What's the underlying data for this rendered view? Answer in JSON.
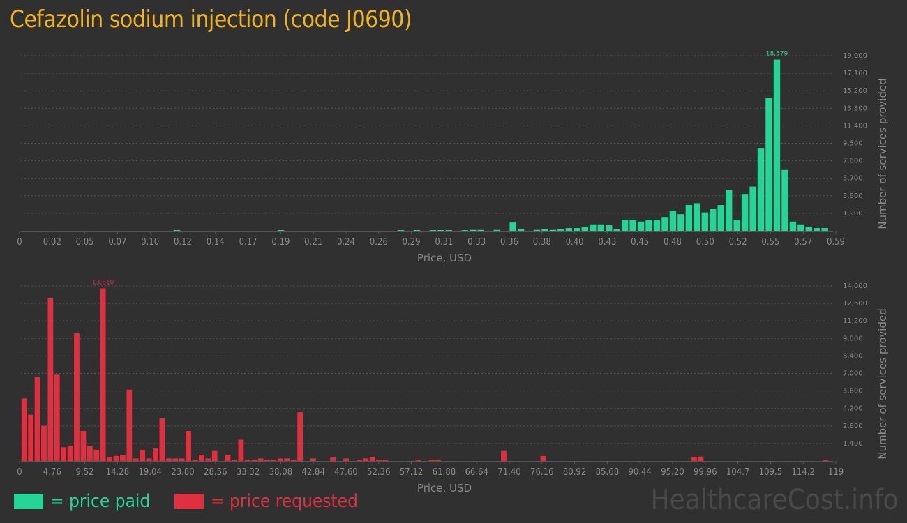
{
  "title": "Cefazolin sodium injection (code J0690)",
  "legend": {
    "paid_label": "= price paid",
    "requested_label": "= price requested"
  },
  "watermark": "HealthcareCost.info",
  "colors": {
    "paid": "#25d597",
    "requested": "#e0303f",
    "title": "#f0b322"
  },
  "chart_data": [
    {
      "type": "bar",
      "name": "price paid",
      "xlabel": "Price, USD",
      "ylabel": "Number of services provided",
      "x_ticks": [
        "0",
        "0.02",
        "0.05",
        "0.07",
        "0.10",
        "0.12",
        "0.14",
        "0.17",
        "0.19",
        "0.21",
        "0.24",
        "0.26",
        "0.29",
        "0.31",
        "0.33",
        "0.36",
        "0.38",
        "0.40",
        "0.43",
        "0.45",
        "0.48",
        "0.50",
        "0.52",
        "0.55",
        "0.57",
        "0.59"
      ],
      "y_ticks": [
        "1,900",
        "3,800",
        "5,700",
        "7,600",
        "9,500",
        "11,400",
        "13,300",
        "15,200",
        "17,100",
        "19,000"
      ],
      "ylim": [
        0,
        19000
      ],
      "peak_label": "18,579",
      "values": [
        0,
        0,
        0,
        0,
        0,
        0,
        0,
        0,
        0,
        0,
        0,
        0,
        0,
        0,
        0,
        0,
        0,
        0,
        0,
        80,
        0,
        0,
        0,
        0,
        0,
        0,
        0,
        0,
        0,
        0,
        0,
        0,
        60,
        0,
        0,
        0,
        0,
        0,
        0,
        0,
        0,
        0,
        0,
        0,
        0,
        0,
        0,
        60,
        0,
        60,
        0,
        60,
        60,
        60,
        0,
        60,
        100,
        100,
        0,
        100,
        0,
        900,
        200,
        0,
        100,
        200,
        100,
        200,
        300,
        300,
        400,
        700,
        700,
        600,
        200,
        1200,
        1200,
        1000,
        1200,
        1200,
        1500,
        2200,
        1800,
        2800,
        3000,
        2000,
        2400,
        2800,
        4400,
        1200,
        4000,
        4800,
        9000,
        14400,
        18579,
        6600,
        1000,
        700,
        400,
        300,
        300
      ]
    },
    {
      "type": "bar",
      "name": "price requested",
      "xlabel": "Price, USD",
      "ylabel": "Number of services provided",
      "x_ticks": [
        "0",
        "4.76",
        "9.52",
        "14.28",
        "19.04",
        "23.80",
        "28.56",
        "33.32",
        "38.08",
        "42.84",
        "47.60",
        "52.36",
        "57.12",
        "61.88",
        "66.64",
        "71.40",
        "76.16",
        "80.92",
        "85.68",
        "90.44",
        "95.20",
        "99.96",
        "104.7",
        "109.5",
        "114.2",
        "119"
      ],
      "y_ticks": [
        "1,400",
        "2,800",
        "4,200",
        "5,600",
        "7,000",
        "8,400",
        "9,800",
        "11,200",
        "12,600",
        "14,000"
      ],
      "ylim": [
        0,
        14000
      ],
      "peak_label": "13,810",
      "values": [
        5000,
        3700,
        6700,
        2800,
        13000,
        6900,
        1100,
        1200,
        10200,
        2400,
        1200,
        900,
        13810,
        300,
        400,
        500,
        5700,
        200,
        900,
        200,
        1000,
        3400,
        200,
        200,
        200,
        2400,
        100,
        500,
        200,
        800,
        0,
        500,
        100,
        1700,
        100,
        100,
        200,
        100,
        100,
        200,
        200,
        100,
        3900,
        0,
        200,
        0,
        0,
        300,
        0,
        200,
        0,
        100,
        200,
        300,
        100,
        100,
        0,
        0,
        0,
        0,
        100,
        0,
        100,
        100,
        0,
        0,
        0,
        0,
        0,
        0,
        0,
        0,
        0,
        800,
        0,
        0,
        0,
        0,
        0,
        400,
        0,
        0,
        0,
        0,
        0,
        0,
        0,
        0,
        0,
        0,
        0,
        0,
        0,
        0,
        0,
        0,
        0,
        0,
        0,
        0,
        0,
        0,
        300,
        350,
        0,
        0,
        0,
        0,
        0,
        0,
        0,
        0,
        0,
        0,
        0,
        0,
        0,
        0,
        0,
        0,
        0,
        0,
        100
      ]
    }
  ]
}
